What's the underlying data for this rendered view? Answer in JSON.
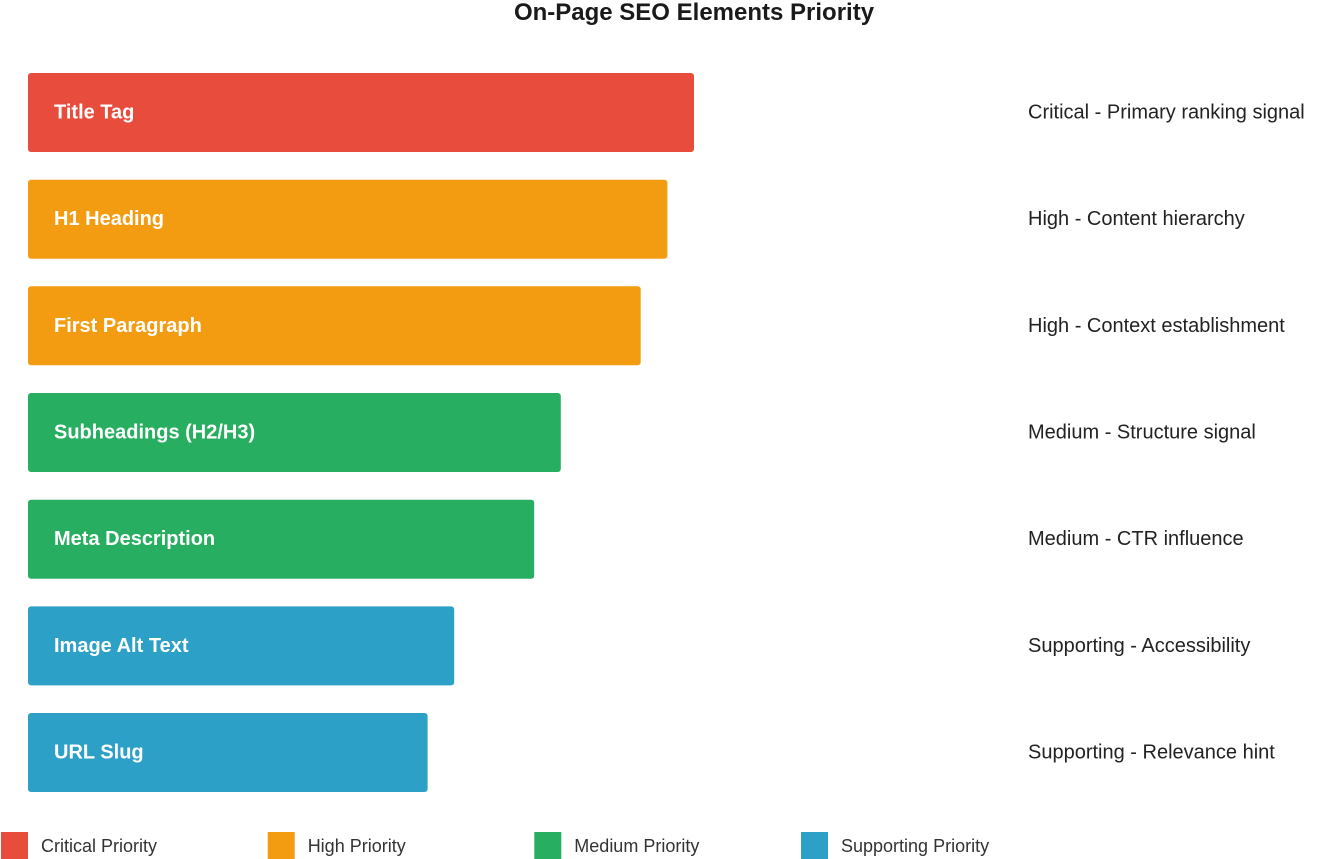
{
  "chart_data": {
    "type": "bar",
    "orientation": "horizontal",
    "title": "On-Page SEO Elements Priority",
    "xlabel": "",
    "ylabel": "",
    "grid": false,
    "legend_position": "bottom",
    "xlim": [
      0,
      100
    ],
    "categories": [
      "Title Tag",
      "H1 Heading",
      "First Paragraph",
      "Subheadings (H2/H3)",
      "Meta Description",
      "Image Alt Text",
      "URL Slug"
    ],
    "values": [
      100,
      96,
      92,
      80,
      76,
      64,
      60
    ],
    "priorities": [
      "critical",
      "high",
      "high",
      "medium",
      "medium",
      "supporting",
      "supporting"
    ],
    "annotations": [
      "Critical - Primary ranking signal",
      "High - Content hierarchy",
      "High - Context establishment",
      "Medium - Structure signal",
      "Medium - CTR influence",
      "Supporting - Accessibility",
      "Supporting - Relevance hint"
    ],
    "legend": [
      {
        "key": "critical",
        "label": "Critical Priority",
        "color": "#e74c3c"
      },
      {
        "key": "high",
        "label": "High Priority",
        "color": "#f39c12"
      },
      {
        "key": "medium",
        "label": "Medium Priority",
        "color": "#27ae60"
      },
      {
        "key": "supporting",
        "label": "Supporting Priority",
        "color": "#2ca0c6"
      }
    ]
  }
}
